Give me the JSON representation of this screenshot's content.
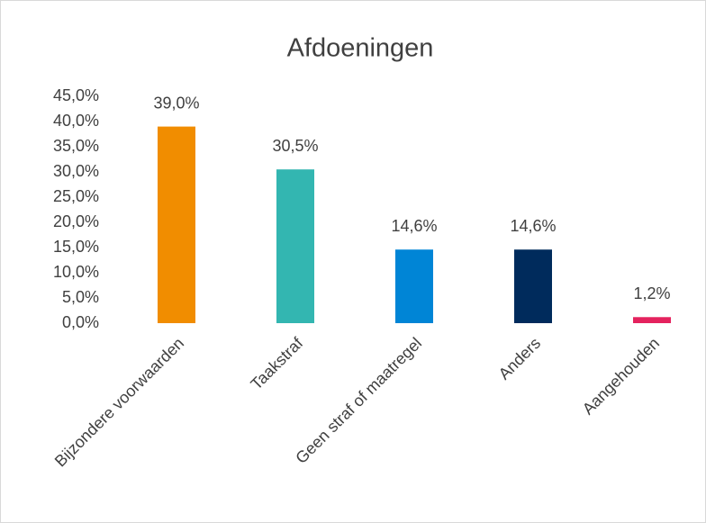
{
  "chart_data": {
    "type": "bar",
    "title": "Afdoeningen",
    "categories": [
      "Bijzondere voorwaarden",
      "Taakstraf",
      "Geen straf of maatregel",
      "Anders",
      "Aangehouden"
    ],
    "values": [
      39.0,
      30.5,
      14.6,
      14.6,
      1.2
    ],
    "value_labels": [
      "39,0%",
      "30,5%",
      "14,6%",
      "14,6%",
      "1,2%"
    ],
    "colors": [
      "#f18d00",
      "#33b6b1",
      "#0085d6",
      "#002b5c",
      "#e4225e"
    ],
    "ylim": [
      0,
      45
    ],
    "yticks": [
      {
        "value": 0,
        "label": "0,0%"
      },
      {
        "value": 5,
        "label": "5,0%"
      },
      {
        "value": 10,
        "label": "10,0%"
      },
      {
        "value": 15,
        "label": "15,0%"
      },
      {
        "value": 20,
        "label": "20,0%"
      },
      {
        "value": 25,
        "label": "25,0%"
      },
      {
        "value": 30,
        "label": "30,0%"
      },
      {
        "value": 35,
        "label": "35,0%"
      },
      {
        "value": 40,
        "label": "40,0%"
      },
      {
        "value": 45,
        "label": "45,0%"
      }
    ],
    "grid": false
  }
}
